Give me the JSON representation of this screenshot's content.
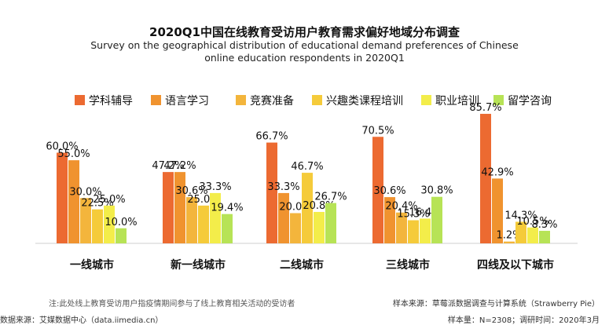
{
  "chart_data": {
    "type": "bar",
    "title": "2020Q1中国在线教育受访用户教育需求偏好地域分布调查",
    "subtitle_lines": [
      "Survey on the geographical distribution of educational demand preferences of Chinese",
      "online education respondents in 2020Q1"
    ],
    "categories": [
      "一线城市",
      "新一线城市",
      "二线城市",
      "三线城市",
      "四线及以下城市"
    ],
    "series": [
      {
        "name": "学科辅导",
        "color": "#EC6A31",
        "values": [
          60.0,
          47.2,
          66.7,
          70.5,
          85.7
        ]
      },
      {
        "name": "语言学习",
        "color": "#F0932F",
        "values": [
          55.0,
          47.2,
          33.3,
          30.6,
          42.9
        ]
      },
      {
        "name": "竞赛准备",
        "color": "#F3B53C",
        "values": [
          30.0,
          30.6,
          20.0,
          20.4,
          1.2
        ]
      },
      {
        "name": "兴趣类课程培训",
        "color": "#F5CB3A",
        "values": [
          22.5,
          25.0,
          46.7,
          15.3,
          14.3
        ]
      },
      {
        "name": "职业培训",
        "color": "#F3ED4A",
        "values": [
          25.0,
          33.3,
          20.8,
          16.4,
          10.5
        ]
      },
      {
        "name": "留学咨询",
        "color": "#B7E356",
        "values": [
          10.0,
          19.4,
          26.7,
          30.8,
          8.3
        ]
      }
    ],
    "ylim": [
      0,
      100
    ],
    "grid": false,
    "legend_position": "top"
  },
  "footer": {
    "note": "注:此处线上教育受访用户指疫情期间参与了线上教育相关活动的受访者",
    "source_left": "数据来源：艾媒数据中心（data.iimedia.cn）",
    "sample_source": "样本来源：草莓派数据调查与计算系统（Strawberry Pie）",
    "sample_info": "样本量：N=2308；调研时间：2020年3月"
  }
}
